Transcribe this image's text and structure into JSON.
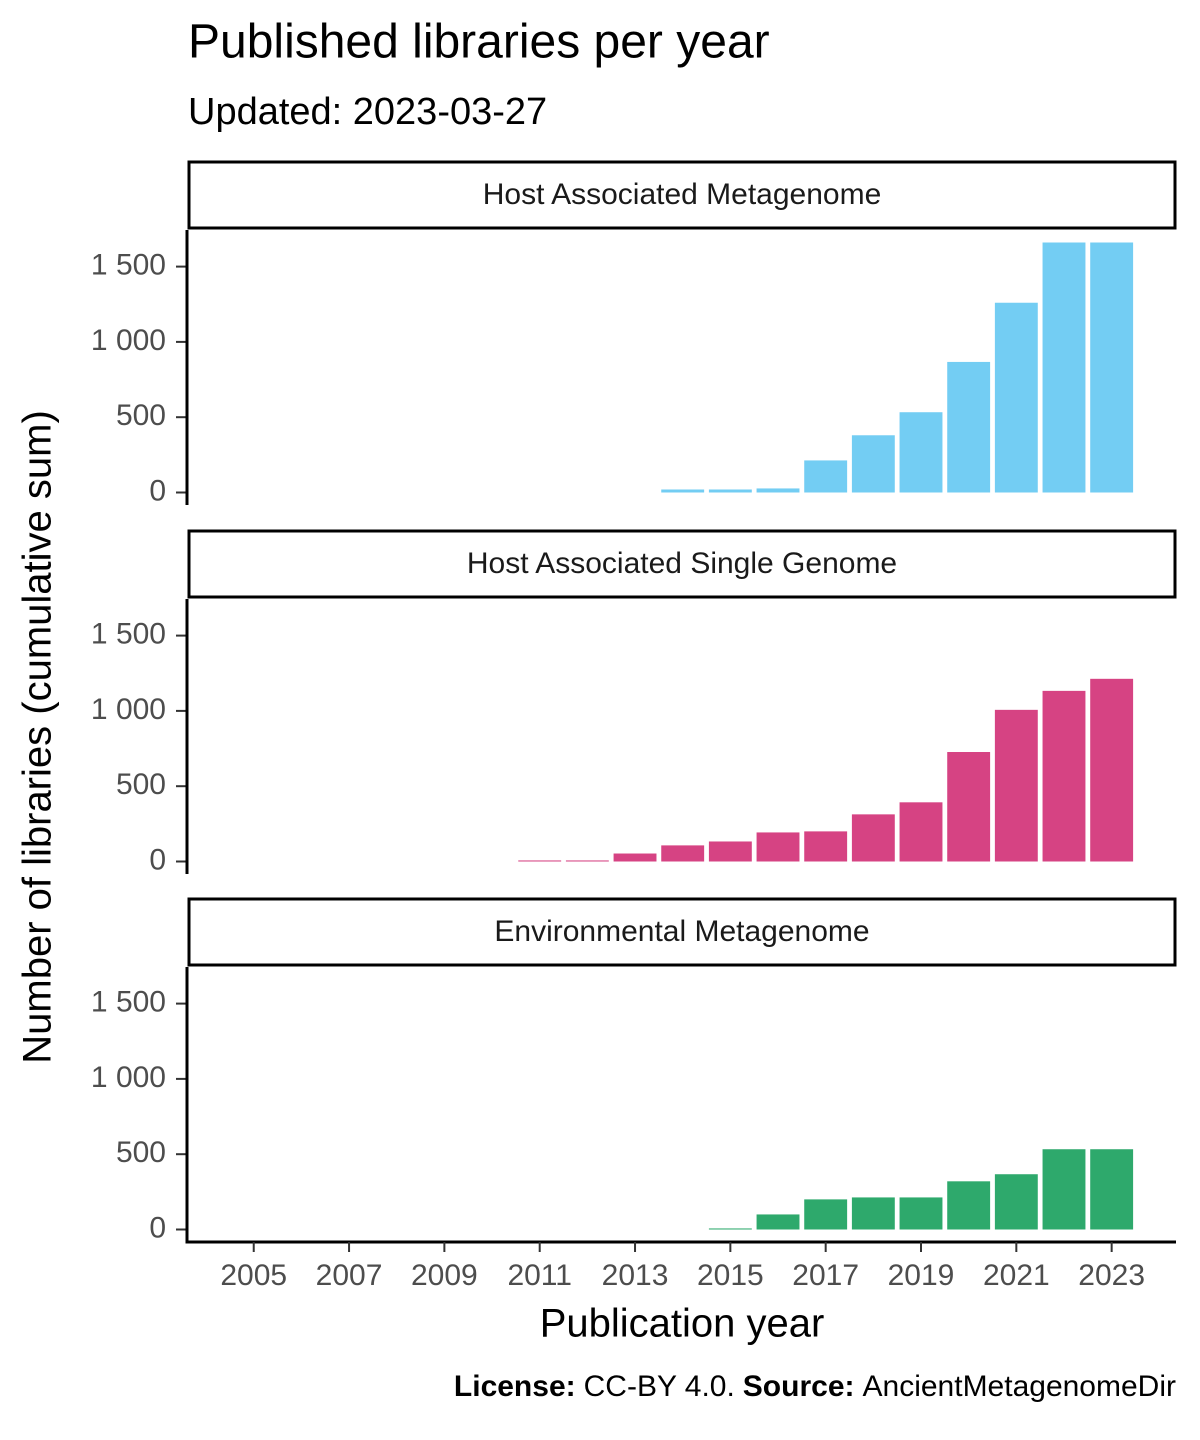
{
  "title": "Published libraries per year",
  "subtitle": "Updated: 2023-03-27",
  "x_label": "Publication year",
  "y_label": "Number of  libraries  (cumulative sum)",
  "caption": {
    "license_label": "License:",
    "license": "CC-BY 4.0.",
    "source_label": "Source:",
    "source": "AncientMetagenomeDir"
  },
  "chart_data": [
    {
      "type": "bar",
      "title": "Host Associated Metagenome",
      "color": "#73cdf3",
      "x": [
        2014,
        2015,
        2016,
        2017,
        2018,
        2019,
        2020,
        2021,
        2022,
        2023
      ],
      "values": [
        20,
        20,
        27,
        213,
        380,
        533,
        867,
        1260,
        1660,
        1660
      ],
      "xlim": [
        2003.6,
        2024.35
      ],
      "ylim": [
        -83,
        1743
      ],
      "yticks": [
        0,
        500,
        {
          "value": 1000,
          "label": "1 000"
        },
        {
          "value": 1500,
          "label": "1 500"
        }
      ]
    },
    {
      "type": "bar",
      "title": "Host Associated Single Genome",
      "color": "#d64383",
      "x": [
        2011,
        2012,
        2013,
        2014,
        2015,
        2016,
        2017,
        2018,
        2019,
        2020,
        2021,
        2022,
        2023
      ],
      "values": [
        7,
        7,
        53,
        107,
        133,
        193,
        200,
        313,
        393,
        727,
        1007,
        1133,
        1213
      ],
      "xlim": [
        2003.6,
        2024.35
      ],
      "ylim": [
        -83,
        1743
      ],
      "yticks": [
        0,
        500,
        {
          "value": 1000,
          "label": "1 000"
        },
        {
          "value": 1500,
          "label": "1 500"
        }
      ]
    },
    {
      "type": "bar",
      "title": "Environmental Metagenome",
      "color": "#2ea96c",
      "x": [
        2015,
        2016,
        2017,
        2018,
        2019,
        2020,
        2021,
        2022,
        2023
      ],
      "values": [
        7,
        100,
        200,
        213,
        213,
        320,
        367,
        533,
        533
      ],
      "xlim": [
        2003.6,
        2024.35
      ],
      "ylim": [
        -83,
        1743
      ],
      "yticks": [
        0,
        500,
        {
          "value": 1000,
          "label": "1 000"
        },
        {
          "value": 1500,
          "label": "1 500"
        }
      ],
      "xticks": [
        2005,
        2007,
        2009,
        2011,
        2013,
        2015,
        2017,
        2019,
        2021,
        2023
      ]
    }
  ]
}
